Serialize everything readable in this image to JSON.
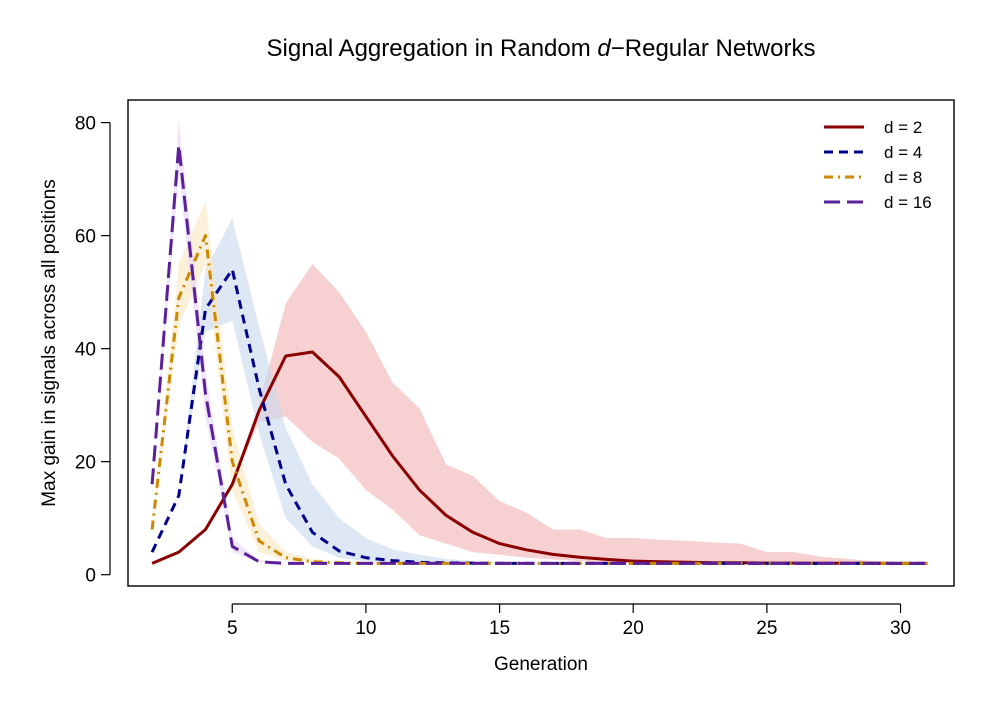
{
  "chart_data": {
    "type": "line",
    "title": {
      "prefix": "Signal Aggregation in Random ",
      "italic": "d",
      "suffix": "−Regular Networks"
    },
    "xlabel": "Generation",
    "ylabel": "Max gain in signals across all positions",
    "xlim": [
      1.1,
      32.0
    ],
    "ylim": [
      -2,
      84
    ],
    "xticks": [
      5,
      10,
      15,
      20,
      25,
      30
    ],
    "yticks": [
      0,
      20,
      40,
      60,
      80
    ],
    "legend_position": "top-right",
    "series": [
      {
        "name": "d = 2",
        "color": "#8b0000",
        "band_color": "#f2b2b2",
        "dash": "solid",
        "x": [
          2,
          3,
          4,
          5,
          6,
          7,
          8,
          9,
          10,
          11,
          12,
          13,
          14,
          15,
          16,
          17,
          18,
          19,
          20,
          21,
          22,
          23,
          24,
          25,
          26,
          27,
          28,
          29,
          30,
          31
        ],
        "values": [
          2,
          4,
          8,
          16,
          29,
          38.7,
          39.4,
          35,
          28,
          21,
          15,
          10.5,
          7.5,
          5.5,
          4.4,
          3.6,
          3.1,
          2.7,
          2.4,
          2.3,
          2.2,
          2.1,
          2.1,
          2.05,
          2.05,
          2.02,
          2.02,
          2.01,
          2.0,
          2.0
        ],
        "upper": [
          2,
          4,
          8,
          16,
          30,
          48,
          55,
          50,
          43,
          34,
          29.5,
          19.5,
          17.5,
          13,
          11,
          8,
          8,
          6.5,
          6.5,
          6.2,
          6.0,
          5.7,
          5.5,
          4,
          4,
          3.2,
          2.8,
          2.4,
          2.2,
          2.0
        ],
        "lower": [
          2,
          4,
          8,
          16,
          27,
          28,
          23.5,
          20.5,
          15,
          11.5,
          7,
          5.5,
          4.0,
          3.5,
          3.0,
          2.7,
          2.4,
          2.2,
          2.1,
          2.05,
          2.0,
          2.0,
          2.0,
          2.0,
          2.0,
          2.0,
          2.0,
          2.0,
          2.0,
          2.0
        ]
      },
      {
        "name": "d = 4",
        "color": "#00008b",
        "band_color": "#c8d9ef",
        "dash": "dashed",
        "x": [
          2,
          3,
          4,
          5,
          6,
          7,
          8,
          9,
          10,
          11,
          12,
          13,
          14,
          15,
          16,
          17,
          18,
          19,
          20,
          21,
          22,
          23,
          24,
          25,
          26,
          27,
          28,
          29,
          30,
          31
        ],
        "values": [
          4,
          14,
          47,
          54,
          33,
          16,
          7.5,
          4.2,
          3,
          2.5,
          2.2,
          2.1,
          2.05,
          2.02,
          2.0,
          2.0,
          2.0,
          2.0,
          2.0,
          2.0,
          2.0,
          2.0,
          2.0,
          2.0,
          2.0,
          2.0,
          2.0,
          2.0,
          2.0,
          2.0
        ],
        "upper": [
          4,
          14,
          54,
          63,
          44,
          26,
          16,
          10,
          6.5,
          4.5,
          3.5,
          2.8,
          2.4,
          2.2,
          2.1,
          2.05,
          2.0,
          2.0,
          2.0,
          2.0,
          2.0,
          2.0,
          2.0,
          2.0,
          2.0,
          2.0,
          2.0,
          2.0,
          2.0,
          2.0
        ],
        "lower": [
          4,
          14,
          43,
          45,
          25,
          10,
          5,
          3,
          2.4,
          2.1,
          2.0,
          2.0,
          2.0,
          2.0,
          2.0,
          2.0,
          2.0,
          2.0,
          2.0,
          2.0,
          2.0,
          2.0,
          2.0,
          2.0,
          2.0,
          2.0,
          2.0,
          2.0,
          2.0,
          2.0
        ]
      },
      {
        "name": "d = 8",
        "color": "#cc8800",
        "band_color": "#fbe6c0",
        "dash": "dashdot",
        "x": [
          2,
          3,
          4,
          5,
          6,
          7,
          8,
          9,
          10,
          11,
          12,
          13,
          14,
          15,
          16,
          17,
          18,
          19,
          20,
          21,
          22,
          23,
          24,
          25,
          26,
          27,
          28,
          29,
          30,
          31
        ],
        "values": [
          8,
          49,
          60,
          20,
          6,
          3,
          2.3,
          2.1,
          2.0,
          2.0,
          2.0,
          2.0,
          2.0,
          2.0,
          2.0,
          2.0,
          2.0,
          2.0,
          2.0,
          2.0,
          2.0,
          2.0,
          2.0,
          2.0,
          2.0,
          2.0,
          2.0,
          2.0,
          2.0,
          2.0
        ],
        "upper": [
          8,
          55,
          66,
          26,
          9,
          4,
          2.8,
          2.2,
          2.0,
          2.0,
          2.0,
          2.0,
          2.0,
          2.0,
          2.0,
          2.0,
          2.0,
          2.0,
          2.0,
          2.0,
          2.0,
          2.0,
          2.0,
          2.0,
          2.0,
          2.0,
          2.0,
          2.0,
          2.0,
          2.0
        ],
        "lower": [
          8,
          44,
          55,
          15,
          4,
          2.5,
          2.1,
          2.0,
          2.0,
          2.0,
          2.0,
          2.0,
          2.0,
          2.0,
          2.0,
          2.0,
          2.0,
          2.0,
          2.0,
          2.0,
          2.0,
          2.0,
          2.0,
          2.0,
          2.0,
          2.0,
          2.0,
          2.0,
          2.0,
          2.0
        ]
      },
      {
        "name": "d = 16",
        "color": "#5b1f99",
        "band_color": "#e6d4f6",
        "dash": "longdash",
        "x": [
          2,
          3,
          4,
          5,
          6,
          7,
          8,
          9,
          10,
          11,
          12,
          13,
          14,
          15,
          16,
          17,
          18,
          19,
          20,
          21,
          22,
          23,
          24,
          25,
          26,
          27,
          28,
          29,
          30,
          31
        ],
        "values": [
          16,
          76,
          32,
          5,
          2.3,
          2.0,
          2.0,
          2.0,
          2.0,
          2.0,
          2.0,
          2.0,
          2.0,
          2.0,
          2.0,
          2.0,
          2.0,
          2.0,
          2.0,
          2.0,
          2.0,
          2.0,
          2.0,
          2.0,
          2.0,
          2.0,
          2.0,
          2.0,
          2.0,
          2.0
        ],
        "upper": [
          16,
          80.5,
          36,
          6.5,
          2.6,
          2.0,
          2.0,
          2.0,
          2.0,
          2.0,
          2.0,
          2.0,
          2.0,
          2.0,
          2.0,
          2.0,
          2.0,
          2.0,
          2.0,
          2.0,
          2.0,
          2.0,
          2.0,
          2.0,
          2.0,
          2.0,
          2.0,
          2.0,
          2.0,
          2.0
        ],
        "lower": [
          16,
          71,
          28,
          4,
          2.1,
          2.0,
          2.0,
          2.0,
          2.0,
          2.0,
          2.0,
          2.0,
          2.0,
          2.0,
          2.0,
          2.0,
          2.0,
          2.0,
          2.0,
          2.0,
          2.0,
          2.0,
          2.0,
          2.0,
          2.0,
          2.0,
          2.0,
          2.0,
          2.0,
          2.0
        ]
      }
    ]
  }
}
